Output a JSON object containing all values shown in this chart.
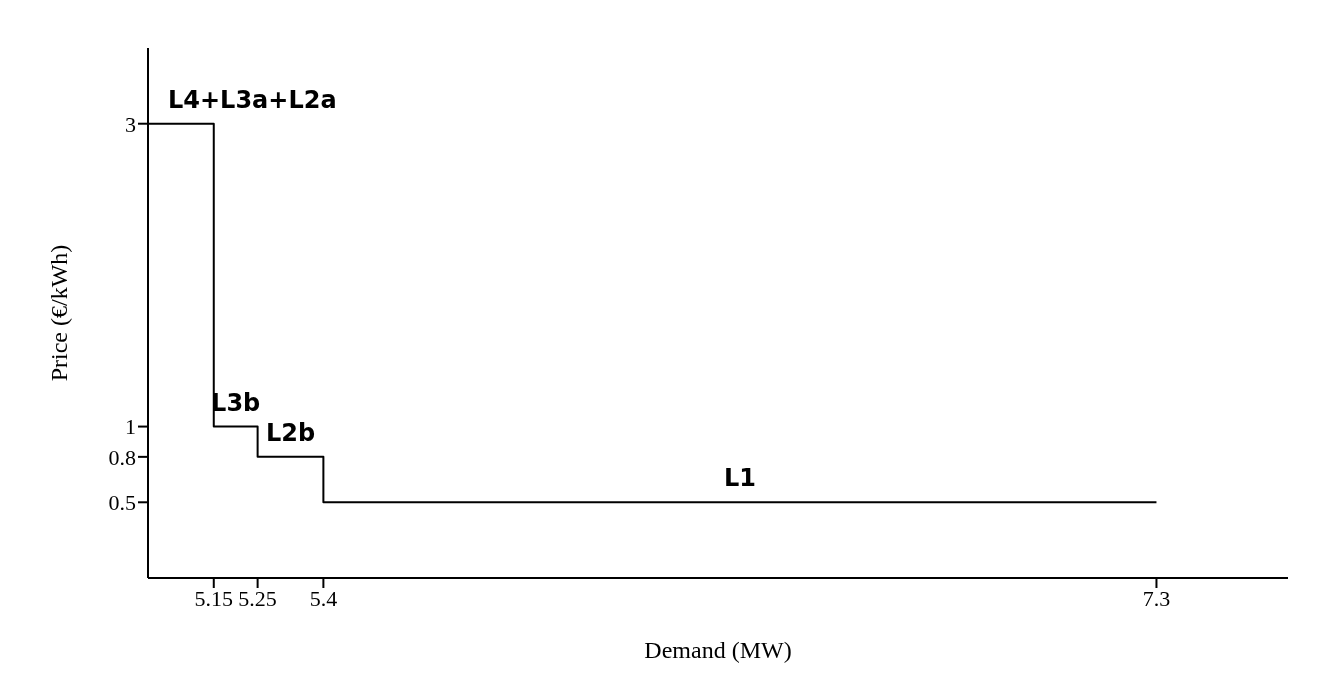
{
  "chart_data": {
    "type": "step",
    "xlabel": "Demand (MW)",
    "ylabel": "Price (€/kWh)",
    "x": [
      5.0,
      5.15,
      5.25,
      5.4,
      7.3
    ],
    "values": [
      3,
      3,
      1,
      0.8,
      0.5
    ],
    "color": "#000000",
    "xlim": [
      5.0,
      7.6
    ],
    "xticks": [
      5.15,
      5.25,
      5.4,
      7.3
    ],
    "ylim": [
      0,
      3.5
    ],
    "yticks": [
      0.5,
      0.8,
      1,
      3
    ],
    "grid": false,
    "legend": false,
    "marker": "none",
    "line_style": "solid",
    "annotations": [
      {
        "text": "L4+L3a+L2a",
        "x": 5.0,
        "y": 3
      },
      {
        "text": "L3b",
        "x": 5.2,
        "y": 1
      },
      {
        "text": "L2b",
        "x": 5.325,
        "y": 0.8
      },
      {
        "text": "L1",
        "x": 6.35,
        "y": 0.5
      }
    ]
  }
}
